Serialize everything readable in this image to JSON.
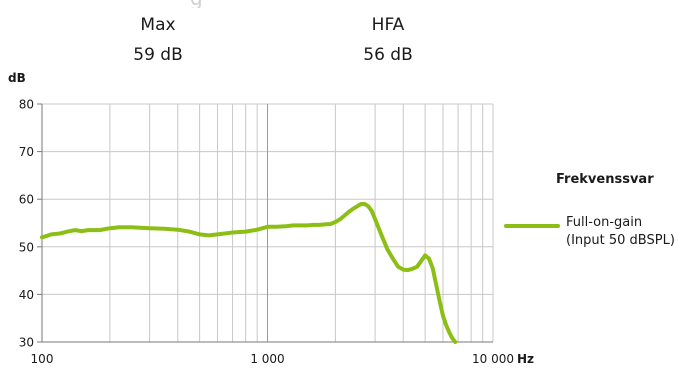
{
  "header": {
    "partial_text": "g",
    "stats": [
      {
        "label": "Max",
        "value": "59 dB"
      },
      {
        "label": "HFA",
        "value": "56 dB"
      }
    ]
  },
  "chart_data": {
    "type": "line",
    "ylabel": "dB",
    "xlabel": "Hz",
    "xscale": "log",
    "xlim": [
      100,
      10000
    ],
    "ylim": [
      30,
      80
    ],
    "xticks": [
      100,
      1000,
      10000
    ],
    "xtick_labels": [
      "100",
      "1 000",
      "10 000"
    ],
    "yticks": [
      30,
      40,
      50,
      60,
      70,
      80
    ],
    "ytick_labels": [
      "30",
      "40",
      "50",
      "60",
      "70",
      "80"
    ],
    "grid": true,
    "legend": {
      "title": "Frekvenssvar",
      "position": "right",
      "entries": [
        {
          "line1": "Full-on-gain",
          "line2": "(Input 50 dBSPL)",
          "color": "#8bbf16"
        }
      ]
    },
    "series": [
      {
        "color": "#8bbf16",
        "x": [
          100,
          105,
          110,
          120,
          130,
          140,
          150,
          160,
          170,
          180,
          200,
          220,
          250,
          300,
          350,
          400,
          450,
          500,
          550,
          600,
          700,
          800,
          900,
          1000,
          1100,
          1200,
          1300,
          1400,
          1500,
          1600,
          1700,
          1800,
          1900,
          2000,
          2100,
          2200,
          2300,
          2400,
          2500,
          2600,
          2700,
          2800,
          2900,
          3000,
          3200,
          3400,
          3600,
          3800,
          4000,
          4200,
          4400,
          4600,
          4800,
          5000,
          5200,
          5400,
          5600,
          5800,
          6000,
          6200,
          6400,
          6600,
          6800
        ],
        "values": [
          52.0,
          52.3,
          52.6,
          52.8,
          53.2,
          53.5,
          53.3,
          53.5,
          53.5,
          53.5,
          53.9,
          54.1,
          54.1,
          53.9,
          53.8,
          53.6,
          53.2,
          52.6,
          52.4,
          52.6,
          53.0,
          53.2,
          53.6,
          54.2,
          54.2,
          54.3,
          54.5,
          54.5,
          54.5,
          54.6,
          54.6,
          54.7,
          54.8,
          55.2,
          55.8,
          56.6,
          57.4,
          58.0,
          58.5,
          59.0,
          59.0,
          58.5,
          57.5,
          55.8,
          52.5,
          49.5,
          47.5,
          45.8,
          45.2,
          45.1,
          45.4,
          45.8,
          47.0,
          48.2,
          47.5,
          45.5,
          42.0,
          38.5,
          35.5,
          33.5,
          32.0,
          30.8,
          30.0
        ]
      }
    ]
  }
}
